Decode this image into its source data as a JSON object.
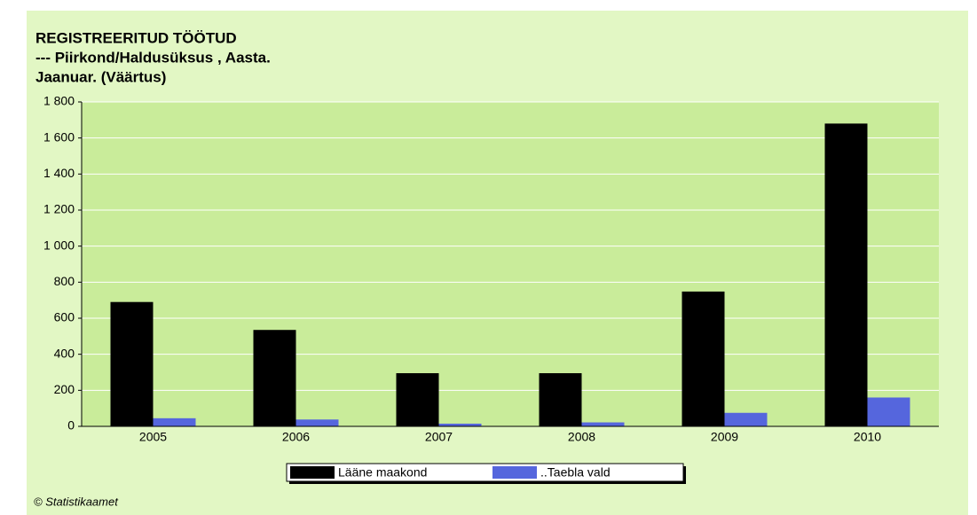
{
  "chart_data": {
    "type": "bar",
    "title": "REGISTREERITUD TÖÖTUD",
    "subtitle": [
      "--- Piirkond/Haldusüksus , Aasta.",
      "Jaanuar. (Väärtus)"
    ],
    "categories": [
      "2005",
      "2006",
      "2007",
      "2008",
      "2009",
      "2010"
    ],
    "series": [
      {
        "name": "Lääne maakond",
        "color": "#000000",
        "values": [
          690,
          535,
          295,
          295,
          748,
          1680
        ]
      },
      {
        "name": "..Taebla vald",
        "color": "#5566dd",
        "values": [
          45,
          38,
          15,
          22,
          75,
          160
        ]
      }
    ],
    "ylim": [
      0,
      1800
    ],
    "yticks": [
      0,
      200,
      400,
      600,
      800,
      {
        "value": 1000,
        "label": "1 000"
      },
      {
        "value": 1200,
        "label": "1 200"
      },
      {
        "value": 1400,
        "label": "1 400"
      },
      {
        "value": 1600,
        "label": "1 600"
      },
      {
        "value": 1800,
        "label": "1 800"
      }
    ],
    "grid": true,
    "legend": "bottom",
    "source": "© Statistikaamet"
  }
}
